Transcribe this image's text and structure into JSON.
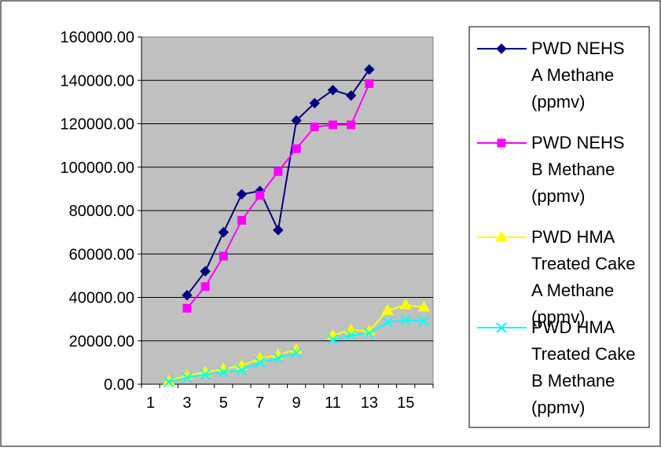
{
  "chart_data": {
    "type": "line",
    "title": "",
    "xlabel": "",
    "ylabel": "",
    "x": [
      1,
      2,
      3,
      4,
      5,
      6,
      7,
      8,
      9,
      10,
      11,
      12,
      13,
      14,
      15,
      16
    ],
    "x_tick_labels": [
      "1",
      "3",
      "5",
      "7",
      "9",
      "11",
      "13",
      "15"
    ],
    "ylim": [
      0,
      160000
    ],
    "y_tick_labels": [
      "0.00",
      "20000.00",
      "40000.00",
      "60000.00",
      "80000.00",
      "100000.00",
      "120000.00",
      "140000.00",
      "160000.00"
    ],
    "grid": "horizontal",
    "plot_background": "#c0c0c0",
    "legend_position": "right",
    "series": [
      {
        "name": "PWD NEHS A Methane (ppmv)",
        "legend_lines": [
          "PWD NEHS",
          "A Methane",
          "(ppmv)"
        ],
        "color": "#000080",
        "marker": "diamond",
        "values": [
          null,
          null,
          41000,
          52000,
          70000,
          87500,
          89000,
          71000,
          121500,
          129500,
          135500,
          133000,
          145000,
          null,
          null,
          null
        ]
      },
      {
        "name": "PWD NEHS B Methane (ppmv)",
        "legend_lines": [
          "PWD NEHS",
          "B Methane",
          "(ppmv)"
        ],
        "color": "#ff00ff",
        "marker": "square",
        "values": [
          null,
          null,
          35000,
          45000,
          59000,
          75500,
          87000,
          98000,
          108500,
          118500,
          119500,
          119500,
          138500,
          null,
          null,
          null
        ]
      },
      {
        "name": "PWD HMA Treated Cake A Methane (ppmv)",
        "legend_lines": [
          "PWD HMA",
          "Treated Cake",
          "A Methane",
          "(ppmv)"
        ],
        "color": "#ffff00",
        "marker": "triangle",
        "values": [
          null,
          1500,
          4000,
          5500,
          7000,
          8500,
          12000,
          13500,
          16000,
          null,
          22500,
          25000,
          24500,
          34000,
          36500,
          35500
        ]
      },
      {
        "name": "PWD HMA Treated Cake B Methane (ppmv)",
        "legend_lines": [
          "PWD HMA",
          "Treated Cake",
          "B Methane",
          "(ppmv)"
        ],
        "color": "#00ffff",
        "marker": "x",
        "values": [
          null,
          1000,
          3000,
          4500,
          5500,
          6500,
          10000,
          12000,
          14500,
          null,
          20500,
          22500,
          23500,
          28500,
          29500,
          29000
        ]
      }
    ]
  }
}
